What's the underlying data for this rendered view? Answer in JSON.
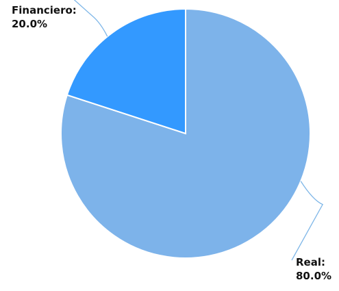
{
  "chart_data": {
    "type": "pie",
    "title": "",
    "categories": [
      "Real",
      "Financiero"
    ],
    "values": [
      80.0,
      20.0
    ],
    "colors": [
      "#7db3ea",
      "#3399ff"
    ],
    "data_labels": [
      {
        "name": "Real:",
        "value": "80.0%"
      },
      {
        "name": "Financiero:",
        "value": "20.0%"
      }
    ],
    "legend": "none",
    "start_angle_deg": 0,
    "direction": "clockwise"
  }
}
